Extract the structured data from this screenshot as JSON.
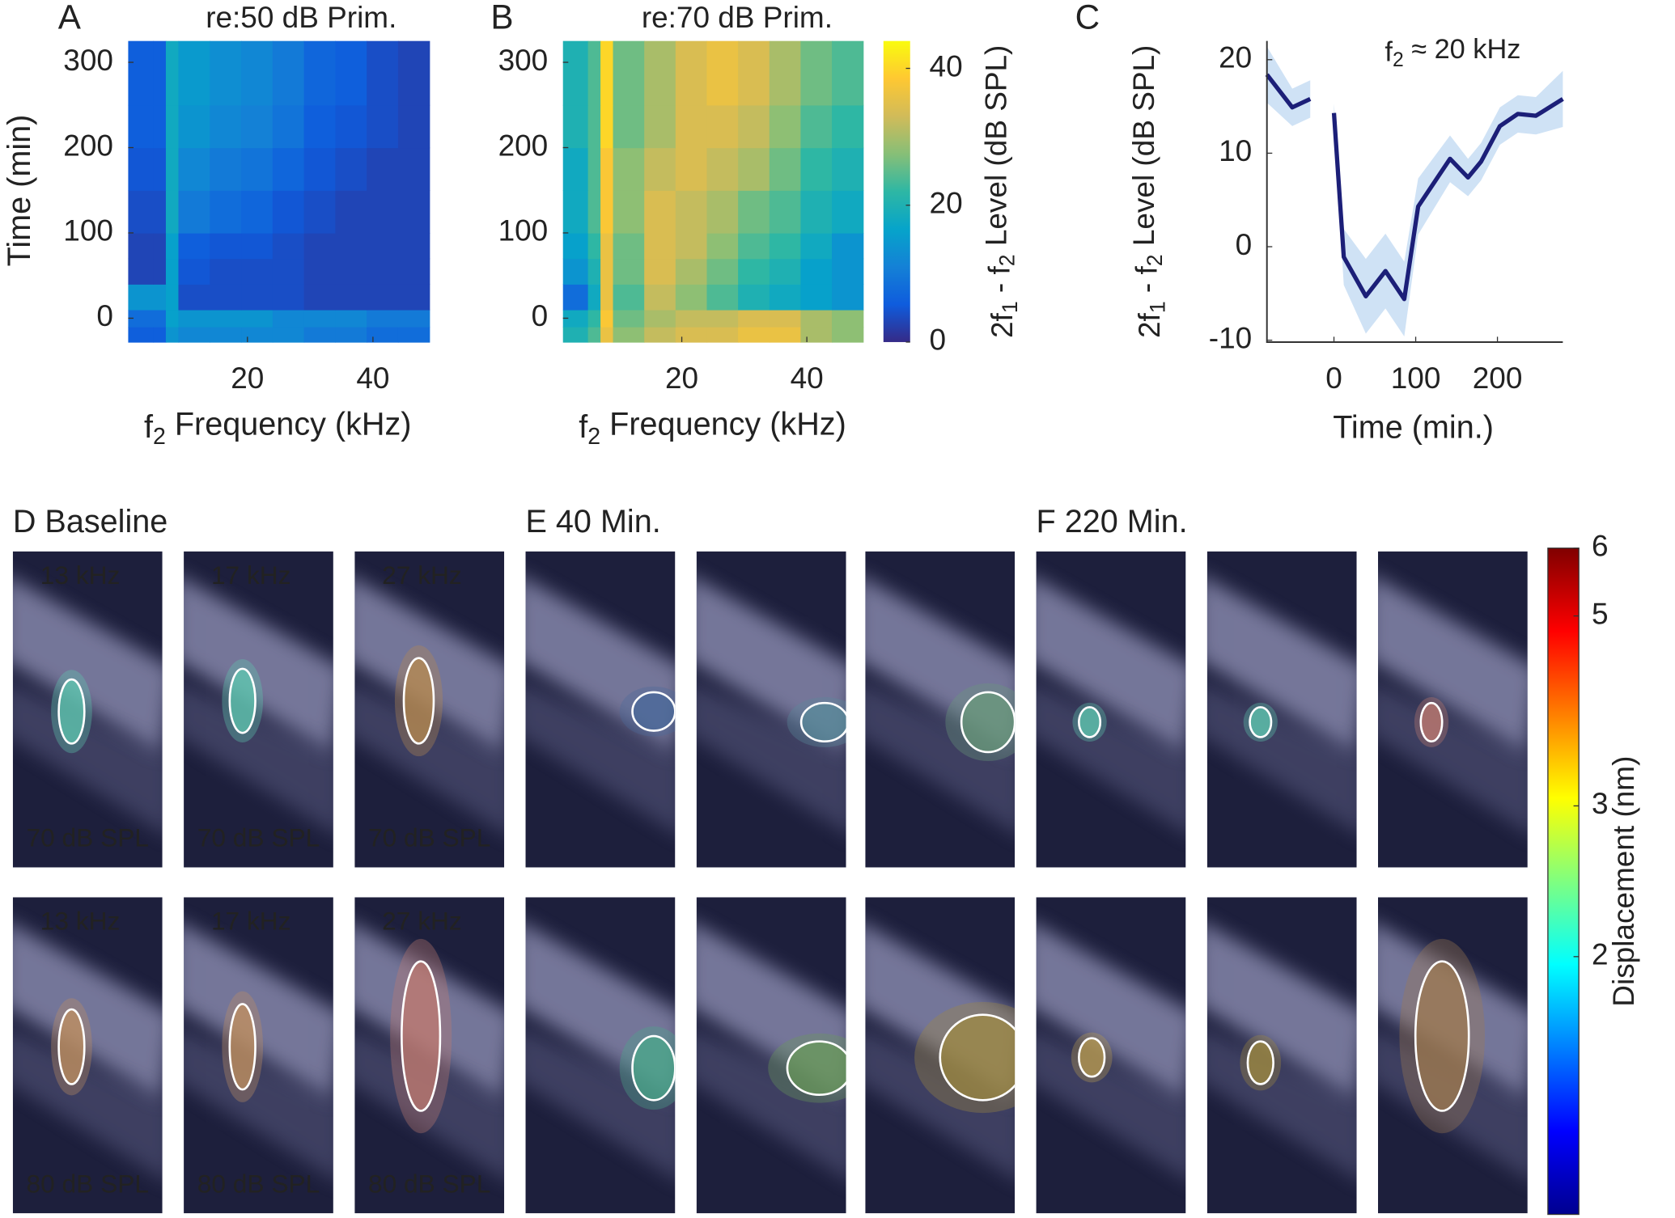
{
  "chart_data": [
    {
      "type": "heatmap",
      "panel_label": "A",
      "title": "re:50 dB Prim.",
      "xlabel_parts": [
        "f",
        "2",
        " Frequency (kHz)"
      ],
      "ylabel": "Time (min)",
      "x_edges": [
        1,
        5,
        7,
        9,
        14,
        19,
        24,
        29,
        34,
        39,
        44,
        49
      ],
      "y_edges": [
        -28,
        -10,
        10,
        40,
        70,
        100,
        150,
        200,
        250,
        325
      ],
      "z": [
        [
          6,
          6,
          14,
          12,
          12,
          12,
          12,
          10,
          10,
          8,
          8
        ],
        [
          8,
          8,
          16,
          14,
          14,
          14,
          12,
          12,
          12,
          10,
          10
        ],
        [
          14,
          14,
          16,
          4,
          4,
          4,
          4,
          3,
          3,
          3,
          3
        ],
        [
          3,
          3,
          16,
          5,
          4,
          4,
          4,
          3,
          3,
          3,
          3
        ],
        [
          3,
          3,
          16,
          6,
          5,
          5,
          4,
          3,
          3,
          3,
          3
        ],
        [
          4,
          4,
          18,
          10,
          8,
          7,
          5,
          4,
          3,
          3,
          3
        ],
        [
          5,
          5,
          18,
          12,
          10,
          9,
          7,
          5,
          4,
          3,
          3
        ],
        [
          6,
          6,
          18,
          14,
          12,
          11,
          9,
          6,
          5,
          4,
          3
        ],
        [
          6,
          6,
          18,
          15,
          13,
          12,
          10,
          7,
          6,
          4,
          3
        ]
      ],
      "xlim": [
        1,
        49
      ],
      "ylim": [
        -28,
        325
      ],
      "xticks": [
        20,
        40
      ],
      "yticks": [
        0,
        100,
        200,
        300
      ],
      "colormap": "parula",
      "clim": [
        0,
        44
      ]
    },
    {
      "type": "heatmap",
      "panel_label": "B",
      "title": "re:70 dB Prim.",
      "xlabel_parts": [
        "f",
        "2",
        " Frequency (kHz)"
      ],
      "x_edges": [
        1,
        5,
        7,
        9,
        14,
        19,
        24,
        29,
        34,
        39,
        44,
        49
      ],
      "y_edges": [
        -28,
        -10,
        10,
        40,
        70,
        100,
        150,
        200,
        250,
        325
      ],
      "z": [
        [
          20,
          24,
          36,
          28,
          32,
          34,
          34,
          36,
          36,
          30,
          28
        ],
        [
          18,
          22,
          38,
          26,
          30,
          32,
          32,
          34,
          34,
          30,
          28
        ],
        [
          8,
          18,
          36,
          24,
          32,
          28,
          24,
          20,
          18,
          16,
          14
        ],
        [
          14,
          20,
          36,
          26,
          34,
          30,
          26,
          22,
          20,
          16,
          14
        ],
        [
          16,
          22,
          36,
          26,
          34,
          32,
          28,
          24,
          22,
          18,
          14
        ],
        [
          18,
          24,
          38,
          28,
          34,
          32,
          30,
          26,
          24,
          20,
          18
        ],
        [
          18,
          24,
          38,
          28,
          32,
          34,
          32,
          30,
          26,
          22,
          20
        ],
        [
          20,
          24,
          40,
          26,
          30,
          34,
          34,
          32,
          28,
          24,
          22
        ],
        [
          20,
          24,
          40,
          26,
          30,
          34,
          36,
          34,
          30,
          26,
          24
        ]
      ],
      "xlim": [
        1,
        49
      ],
      "ylim": [
        -28,
        325
      ],
      "xticks": [
        20,
        40
      ],
      "yticks": [
        0,
        100,
        200,
        300
      ],
      "colormap": "parula",
      "clim": [
        0,
        44
      ],
      "colorbar": {
        "label_parts": [
          "2f",
          "1",
          " - f",
          "2",
          " Level (dB SPL)"
        ],
        "ticks": [
          0,
          20,
          40
        ]
      }
    },
    {
      "type": "line",
      "panel_label": "C",
      "annotation_parts": [
        "f",
        "2",
        " ≈ 20 kHz"
      ],
      "xlabel": "Time (min.)",
      "ylabel_parts": [
        "2f",
        "1",
        " - f",
        "2",
        " Level (dB SPL)"
      ],
      "x": [
        -82,
        -51,
        -29,
        -14,
        0,
        12,
        39,
        63,
        86,
        103,
        142,
        164,
        180,
        203,
        225,
        247,
        280
      ],
      "series": [
        {
          "color": "#1c1f78",
          "band_color": "#cfe2f5",
          "values": [
            18.4,
            14.9,
            15.8,
            null,
            14.3,
            -1.1,
            -5.3,
            -2.6,
            -5.6,
            4.3,
            9.4,
            7.4,
            9.1,
            12.9,
            14.2,
            14.0,
            15.8
          ],
          "errors": [
            3,
            2,
            2,
            null,
            1,
            3,
            4,
            4,
            4,
            3,
            2.5,
            2,
            2,
            2,
            2,
            2,
            3
          ]
        }
      ],
      "xlim": [
        -82,
        280
      ],
      "ylim": [
        -10.2,
        22
      ],
      "xticks": [
        0,
        100,
        200
      ],
      "yticks": [
        -10,
        0,
        10,
        20
      ]
    }
  ],
  "image_panels": {
    "groups": [
      {
        "title": "D Baseline",
        "freq_labels": [
          "13 kHz",
          "17 kHz",
          "27 kHz"
        ],
        "level_labels": [
          "70 dB SPL",
          "80 dB SPL"
        ]
      },
      {
        "title": "E 40 Min."
      },
      {
        "title": "F 220 Min."
      }
    ],
    "colorbar": {
      "label": "Displacement (nm)",
      "ticks": [
        2,
        3,
        5,
        6
      ],
      "clim": [
        1,
        6
      ],
      "scale": "log",
      "colormap": "jet"
    }
  }
}
